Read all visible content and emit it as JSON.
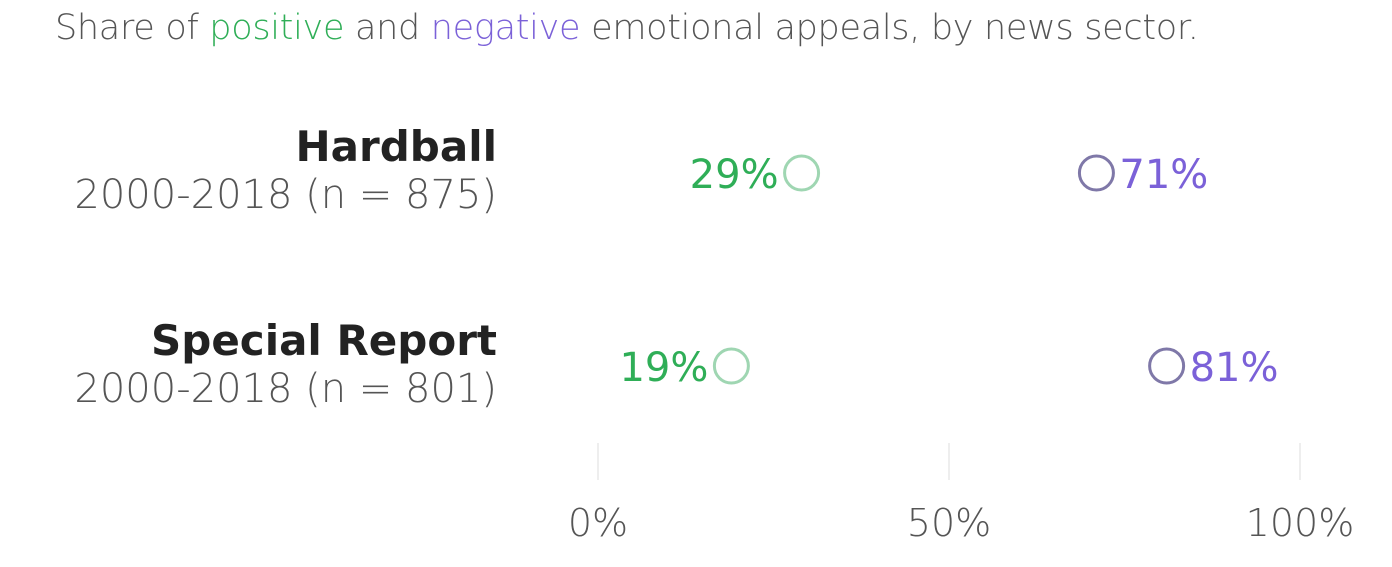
{
  "title": {
    "prefix": "Share of ",
    "positive_word": "positive",
    "middle": " and ",
    "negative_word": "negative",
    "suffix": " emotional appeals, by news sector."
  },
  "colors": {
    "positive": "#2fae57",
    "negative": "#7b61d8",
    "axis_tick_text": "#555555",
    "gridline": "#dddddd"
  },
  "chart_data": {
    "type": "dumbbell",
    "x_axis": {
      "ticks": [
        0,
        50,
        100
      ],
      "tick_labels": [
        "0%",
        "50%",
        "100%"
      ],
      "xlim": [
        0,
        100
      ]
    },
    "rows": [
      {
        "name": "Hardball",
        "period": "2000-2018 (n = 875)",
        "positive": 29,
        "negative": 71,
        "positive_label": "29%",
        "negative_label": "71%"
      },
      {
        "name": "Special Report",
        "period": "2000-2018 (n = 801)",
        "positive": 19,
        "negative": 81,
        "positive_label": "19%",
        "negative_label": "81%"
      }
    ]
  }
}
